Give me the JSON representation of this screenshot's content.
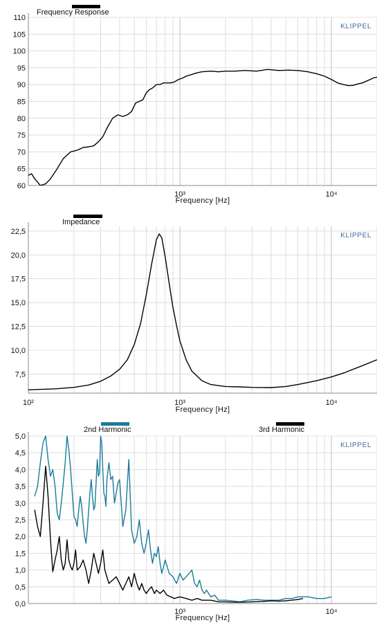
{
  "chart_data": [
    {
      "type": "line",
      "brand": "KLIPPEL",
      "xlabel": "Frequency  [Hz]",
      "xscale": "log",
      "xlim": [
        100,
        20000
      ],
      "ylim": [
        60,
        110
      ],
      "ytick_labels": [
        "110",
        "105",
        "100",
        "95",
        "90",
        "85",
        "80",
        "75",
        "70",
        "65",
        "60"
      ],
      "yticks": [
        110,
        105,
        100,
        95,
        90,
        85,
        80,
        75,
        70,
        65,
        60
      ],
      "xtick_labels": [
        "10³",
        "10⁴"
      ],
      "xticks": [
        1000,
        10000
      ],
      "grid": true,
      "legend": [
        {
          "label": "Frequency Response",
          "color": "#000000"
        }
      ],
      "series": [
        {
          "name": "Frequency Response",
          "color": "#000000",
          "x": [
            100,
            105,
            110,
            115,
            120,
            130,
            140,
            155,
            170,
            190,
            210,
            230,
            250,
            270,
            290,
            310,
            330,
            360,
            390,
            420,
            450,
            480,
            510,
            540,
            570,
            600,
            630,
            660,
            700,
            740,
            780,
            820,
            870,
            920,
            980,
            1050,
            1100,
            1200,
            1300,
            1400,
            1600,
            1800,
            2000,
            2300,
            2700,
            3200,
            3800,
            4500,
            5200,
            6000,
            7000,
            8000,
            9000,
            10000,
            11000,
            12000,
            13000,
            14000,
            15000,
            16000,
            17000,
            18000,
            19000,
            20000
          ],
          "y": [
            63,
            63.5,
            62,
            61,
            60,
            60.5,
            62,
            65,
            68,
            70,
            70.5,
            71.3,
            71.5,
            71.8,
            73,
            74.5,
            77,
            80,
            81,
            80.5,
            81,
            82,
            84.5,
            85,
            85.5,
            87.5,
            88.5,
            89,
            90,
            90,
            90.5,
            90.5,
            90.5,
            90.8,
            91.5,
            92,
            92.5,
            93,
            93.5,
            93.8,
            94,
            93.8,
            94,
            94,
            94.2,
            94,
            94.5,
            94.2,
            94.3,
            94.2,
            93.8,
            93.2,
            92.5,
            91.5,
            90.5,
            90,
            89.7,
            89.8,
            90.2,
            90.5,
            91,
            91.5,
            92,
            92.2
          ]
        }
      ]
    },
    {
      "type": "line",
      "brand": "KLIPPEL",
      "xlabel": "Frequency  [Hz]",
      "xscale": "log",
      "xlim": [
        100,
        20000
      ],
      "ylim": [
        5.5,
        23
      ],
      "ytick_labels": [
        "22,5",
        "20,0",
        "17,5",
        "15,0",
        "12,5",
        "10,0",
        "7,5"
      ],
      "yticks": [
        22.5,
        20,
        17.5,
        15,
        12.5,
        10,
        7.5
      ],
      "xtick_labels": [
        "10²",
        "10³",
        "10⁴"
      ],
      "xticks": [
        100,
        1000,
        10000
      ],
      "grid": true,
      "legend": [
        {
          "label": "Impedance",
          "color": "#000000"
        }
      ],
      "series": [
        {
          "name": "Impedance",
          "color": "#000000",
          "x": [
            100,
            150,
            200,
            250,
            300,
            350,
            400,
            450,
            500,
            550,
            600,
            650,
            700,
            730,
            760,
            800,
            850,
            900,
            950,
            1000,
            1100,
            1200,
            1400,
            1600,
            2000,
            2500,
            3000,
            4000,
            5000,
            6000,
            8000,
            10000,
            12000,
            15000,
            20000
          ],
          "y": [
            5.85,
            5.95,
            6.1,
            6.35,
            6.75,
            7.3,
            8.0,
            9.0,
            10.6,
            12.8,
            15.8,
            19.0,
            21.6,
            22.2,
            21.8,
            19.8,
            17.0,
            14.5,
            12.6,
            11.0,
            9.0,
            7.8,
            6.8,
            6.4,
            6.2,
            6.15,
            6.1,
            6.08,
            6.2,
            6.4,
            6.8,
            7.2,
            7.6,
            8.2,
            9.0
          ]
        }
      ]
    },
    {
      "type": "line",
      "brand": "KLIPPEL",
      "xlabel": "Frequency  [Hz]",
      "xscale": "log",
      "xlim": [
        100,
        20000
      ],
      "ylim": [
        0,
        5
      ],
      "ytick_labels": [
        "5,0",
        "4,5",
        "4,0",
        "3,5",
        "3,0",
        "2,5",
        "2,0",
        "1,5",
        "1,0",
        "0,5",
        "0,0"
      ],
      "yticks": [
        5,
        4.5,
        4,
        3.5,
        3,
        2.5,
        2,
        1.5,
        1,
        0.5,
        0
      ],
      "xtick_labels": [
        "10³",
        "10⁴"
      ],
      "xticks": [
        1000,
        10000
      ],
      "grid": true,
      "legend": [
        {
          "label": "2nd Harmonic",
          "color": "#1a7a9a"
        },
        {
          "label": "3rd Harmonic",
          "color": "#000000"
        }
      ],
      "series": [
        {
          "name": "2nd Harmonic",
          "color": "#1a7a9a",
          "x": [
            110,
            115,
            120,
            125,
            130,
            135,
            140,
            145,
            150,
            155,
            160,
            165,
            170,
            175,
            180,
            185,
            190,
            195,
            200,
            205,
            210,
            215,
            220,
            225,
            230,
            235,
            240,
            245,
            250,
            255,
            260,
            265,
            270,
            275,
            280,
            285,
            290,
            295,
            300,
            305,
            310,
            315,
            320,
            325,
            330,
            340,
            350,
            360,
            370,
            380,
            390,
            400,
            420,
            440,
            460,
            480,
            500,
            520,
            540,
            560,
            580,
            600,
            620,
            640,
            660,
            680,
            700,
            720,
            740,
            760,
            780,
            800,
            850,
            900,
            950,
            1000,
            1050,
            1100,
            1150,
            1200,
            1250,
            1300,
            1350,
            1400,
            1450,
            1500,
            1600,
            1700,
            1800,
            2000,
            2200,
            2500,
            2800,
            3200,
            3600,
            4000,
            4500,
            5000,
            5500,
            6000,
            7000,
            8000,
            9000,
            10000
          ],
          "y": [
            3.2,
            3.5,
            4.2,
            4.8,
            5.0,
            4.3,
            3.8,
            4.0,
            3.5,
            2.7,
            2.5,
            3.0,
            3.6,
            4.2,
            5.0,
            4.6,
            4.0,
            3.3,
            2.6,
            2.5,
            2.3,
            2.8,
            3.2,
            2.9,
            2.4,
            2.0,
            1.8,
            2.2,
            2.8,
            3.3,
            3.7,
            3.2,
            2.8,
            2.9,
            3.6,
            4.3,
            3.8,
            3.9,
            5.0,
            4.8,
            4.0,
            3.3,
            3.2,
            2.9,
            3.7,
            4.2,
            3.7,
            3.8,
            3.0,
            3.3,
            3.6,
            3.7,
            2.3,
            2.8,
            4.3,
            2.2,
            1.8,
            2.0,
            2.5,
            1.8,
            1.5,
            1.8,
            2.2,
            1.6,
            1.2,
            1.5,
            1.4,
            1.7,
            1.2,
            0.9,
            1.1,
            1.3,
            0.9,
            0.8,
            0.6,
            0.9,
            0.7,
            0.8,
            0.9,
            1.0,
            0.6,
            0.5,
            0.7,
            0.4,
            0.3,
            0.4,
            0.2,
            0.25,
            0.1,
            0.1,
            0.08,
            0.05,
            0.1,
            0.12,
            0.1,
            0.1,
            0.1,
            0.15,
            0.15,
            0.2,
            0.2,
            0.15,
            0.15,
            0.2
          ]
        },
        {
          "name": "3rd Harmonic",
          "color": "#000000",
          "x": [
            110,
            115,
            120,
            125,
            130,
            135,
            140,
            145,
            150,
            155,
            160,
            165,
            170,
            175,
            180,
            185,
            190,
            195,
            200,
            205,
            210,
            220,
            230,
            240,
            250,
            260,
            270,
            280,
            290,
            300,
            310,
            320,
            340,
            360,
            380,
            400,
            420,
            440,
            460,
            480,
            500,
            520,
            540,
            560,
            580,
            600,
            620,
            650,
            680,
            700,
            740,
            780,
            820,
            870,
            920,
            1000,
            1100,
            1200,
            1300,
            1400,
            1600,
            1800,
            2000,
            2300,
            2600,
            3000,
            3500,
            4000,
            4500,
            5000,
            6000,
            6500
          ],
          "y": [
            2.8,
            2.3,
            2.0,
            3.0,
            4.1,
            3.2,
            1.9,
            0.95,
            1.3,
            1.6,
            2.0,
            1.3,
            1.0,
            1.2,
            1.9,
            1.3,
            1.1,
            1.0,
            1.2,
            1.6,
            1.0,
            1.1,
            1.3,
            1.0,
            0.6,
            1.0,
            1.5,
            1.2,
            0.9,
            1.2,
            1.6,
            1.0,
            0.6,
            0.7,
            0.8,
            0.6,
            0.4,
            0.6,
            0.8,
            0.5,
            0.9,
            0.6,
            0.4,
            0.6,
            0.4,
            0.3,
            0.4,
            0.5,
            0.3,
            0.4,
            0.3,
            0.4,
            0.25,
            0.2,
            0.15,
            0.2,
            0.15,
            0.1,
            0.15,
            0.1,
            0.1,
            0.05,
            0.05,
            0.04,
            0.04,
            0.05,
            0.06,
            0.08,
            0.07,
            0.08,
            0.12,
            0.15
          ]
        }
      ]
    }
  ]
}
